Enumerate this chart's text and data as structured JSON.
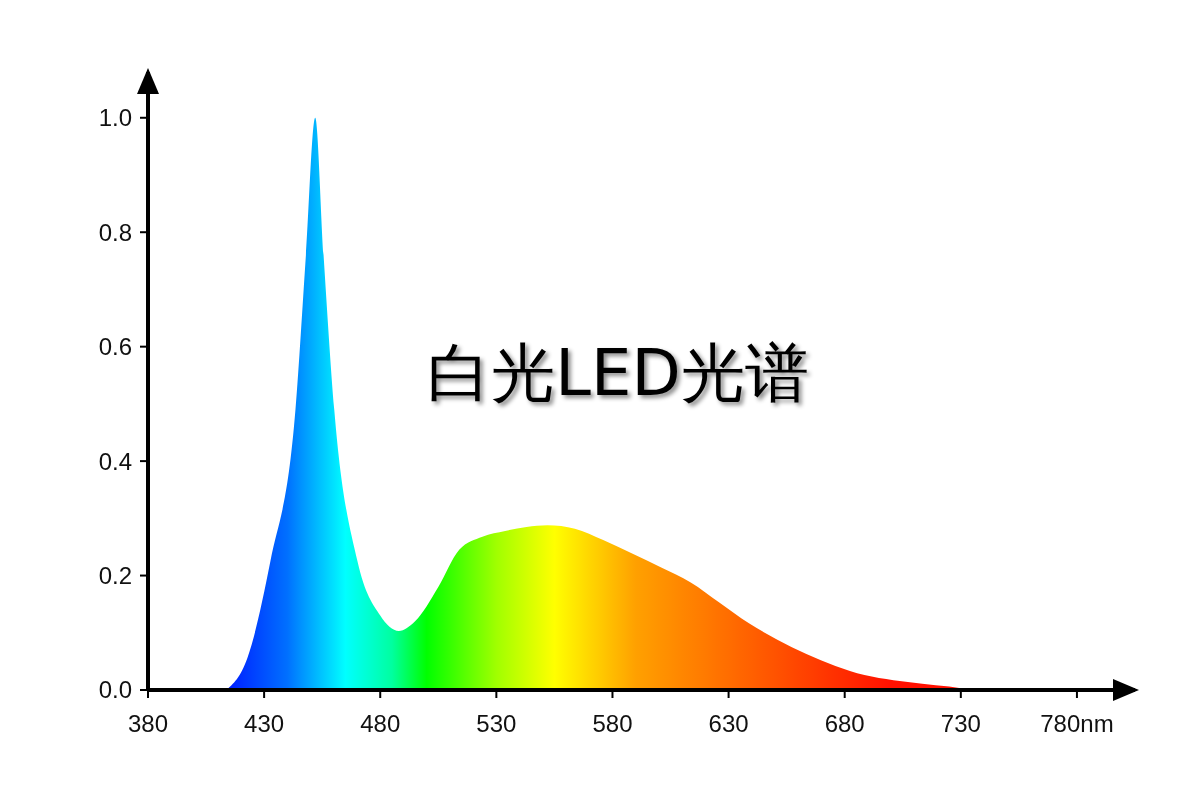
{
  "chart_data": {
    "type": "area",
    "title": "白光LED光谱",
    "x": [
      413.7,
      422.8,
      432.7,
      443.5,
      448,
      452,
      455.6,
      460.2,
      470.2,
      480,
      488,
      495,
      505,
      514,
      524,
      533.8,
      543,
      552,
      563.8,
      576,
      588.7,
      601,
      613.7,
      626,
      638.6,
      651,
      663.5,
      676,
      688.5,
      701,
      713.4,
      725,
      735
    ],
    "values": [
      0,
      0.056,
      0.225,
      0.49,
      0.76,
      1.0,
      0.76,
      0.49,
      0.225,
      0.13,
      0.103,
      0.12,
      0.18,
      0.245,
      0.268,
      0.278,
      0.285,
      0.288,
      0.282,
      0.262,
      0.238,
      0.214,
      0.188,
      0.153,
      0.117,
      0.088,
      0.063,
      0.042,
      0.026,
      0.017,
      0.011,
      0.006,
      0
    ],
    "xlim": [
      380,
      805
    ],
    "ylim": [
      0,
      1.08
    ],
    "xticks": [
      380,
      430,
      480,
      530,
      580,
      630,
      680,
      730,
      {
        "value": 780,
        "label": "780nm"
      }
    ],
    "yticks": [
      {
        "value": 0,
        "label": "0.0"
      },
      {
        "value": 0.2,
        "label": "0.2"
      },
      {
        "value": 0.4,
        "label": "0.4"
      },
      {
        "value": 0.6,
        "label": "0.6"
      },
      {
        "value": 0.8,
        "label": "0.8"
      },
      {
        "value": 1,
        "label": "1.0"
      }
    ],
    "grid": false
  }
}
